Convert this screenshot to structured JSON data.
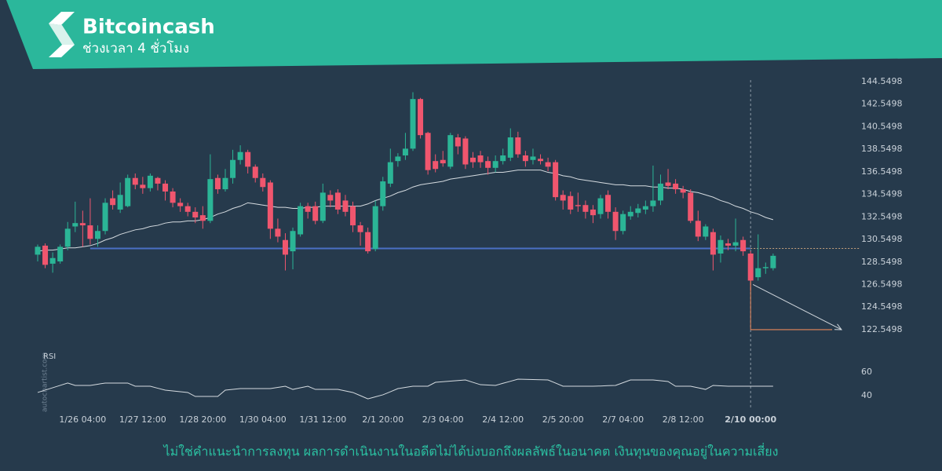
{
  "header": {
    "title": "Bitcoincash",
    "subtitle": "ช่วงเวลา 4 ชั่วโมง"
  },
  "chart_data": {
    "type": "candlestick",
    "categories": [
      null,
      null,
      null,
      null,
      null,
      null,
      "1/26 04:00",
      null,
      null,
      null,
      null,
      null,
      null,
      null,
      "1/27 12:00",
      null,
      null,
      null,
      null,
      null,
      null,
      null,
      "1/28 20:00",
      null,
      null,
      null,
      null,
      null,
      null,
      null,
      "1/30 04:00",
      null,
      null,
      null,
      null,
      null,
      null,
      null,
      "1/31 12:00",
      null,
      null,
      null,
      null,
      null,
      null,
      null,
      "2/1 20:00",
      null,
      null,
      null,
      null,
      null,
      null,
      null,
      "2/3 04:00",
      null,
      null,
      null,
      null,
      null,
      null,
      null,
      "2/4 12:00",
      null,
      null,
      null,
      null,
      null,
      null,
      null,
      "2/5 20:00",
      null,
      null,
      null,
      null,
      null,
      null,
      null,
      "2/7 04:00",
      null,
      null,
      null,
      null,
      null,
      null,
      null,
      "2/8 12:00",
      null,
      null,
      null,
      null,
      null,
      null,
      null,
      null,
      "2/10 00:00",
      null,
      null,
      null
    ],
    "open": [
      129.2,
      130.0,
      128.4,
      128.6,
      129.9,
      131.7,
      132.0,
      131.8,
      130.6,
      131.3,
      134.2,
      133.2,
      133.5,
      136.0,
      135.4,
      135.1,
      136.0,
      135.5,
      134.8,
      133.8,
      133.5,
      133.0,
      132.7,
      132.2,
      136.0,
      135.0,
      136.0,
      137.6,
      138.3,
      137.0,
      136.0,
      135.6,
      131.5,
      130.5,
      129.5,
      131.0,
      133.5,
      133.5,
      132.2,
      134.5,
      134.7,
      134.0,
      133.5,
      131.8,
      131.2,
      129.7,
      133.5,
      135.5,
      137.5,
      138.0,
      138.6,
      143.0,
      140.0,
      137.5,
      137.6,
      137.0,
      139.6,
      139.5,
      137.8,
      138.0,
      137.5,
      136.9,
      137.5,
      137.8,
      139.6,
      138.0,
      137.6,
      137.7,
      137.4,
      137.4,
      134.5,
      134.4,
      133.6,
      133.6,
      133.2,
      132.8,
      134.5,
      133.0,
      131.3,
      132.6,
      132.9,
      133.2,
      133.5,
      134.0,
      135.6,
      135.5,
      135.0,
      134.7,
      132.2,
      130.8,
      131.2,
      129.3,
      130.2,
      130.0,
      130.5,
      129.3,
      127.2,
      128.0,
      128.0
    ],
    "high": [
      130.1,
      130.2,
      129.4,
      130.1,
      132.1,
      133.9,
      133.1,
      134.2,
      131.8,
      134.2,
      134.9,
      135.6,
      136.3,
      136.4,
      136.1,
      136.4,
      136.1,
      135.8,
      135.1,
      134.2,
      133.8,
      133.4,
      133.5,
      138.1,
      136.3,
      136.8,
      138.5,
      138.9,
      138.5,
      137.2,
      136.4,
      135.8,
      132.4,
      131.1,
      131.6,
      133.8,
      133.8,
      133.9,
      135.5,
      134.9,
      135.0,
      134.5,
      133.9,
      132.1,
      131.6,
      134.0,
      136.1,
      138.6,
      138.2,
      140.0,
      143.6,
      143.1,
      140.1,
      138.1,
      138.4,
      140.0,
      139.9,
      139.7,
      138.3,
      138.4,
      137.9,
      138.0,
      138.6,
      140.4,
      140.1,
      138.4,
      138.6,
      138.1,
      137.8,
      137.6,
      134.9,
      134.8,
      134.7,
      134.0,
      133.6,
      134.5,
      134.9,
      133.4,
      133.1,
      133.5,
      133.7,
      134.0,
      137.1,
      136.3,
      136.8,
      135.9,
      135.3,
      135.0,
      133.1,
      131.9,
      131.5,
      130.9,
      130.6,
      132.4,
      130.8,
      129.5,
      131.0,
      128.5,
      129.3
    ],
    "low": [
      128.6,
      128.0,
      127.6,
      128.4,
      129.6,
      131.2,
      129.9,
      130.1,
      129.9,
      131.0,
      133.2,
      132.9,
      133.4,
      135.0,
      134.6,
      134.8,
      134.9,
      134.0,
      133.4,
      133.0,
      132.6,
      132.0,
      131.5,
      132.0,
      134.6,
      134.8,
      135.5,
      137.2,
      136.4,
      135.6,
      134.8,
      130.6,
      130.3,
      127.8,
      127.9,
      130.8,
      132.4,
      131.9,
      132.0,
      133.4,
      132.8,
      132.6,
      131.2,
      130.0,
      129.3,
      129.5,
      133.1,
      135.2,
      137.0,
      137.6,
      138.4,
      139.5,
      136.3,
      136.5,
      137.0,
      136.8,
      138.1,
      136.8,
      136.9,
      136.9,
      136.3,
      136.5,
      137.2,
      137.5,
      137.8,
      137.0,
      137.2,
      137.2,
      136.6,
      134.0,
      133.2,
      132.8,
      133.0,
      132.4,
      132.0,
      132.4,
      132.4,
      130.5,
      131.0,
      132.3,
      132.5,
      132.8,
      133.0,
      133.6,
      135.0,
      134.6,
      134.2,
      132.0,
      130.4,
      130.5,
      127.8,
      128.5,
      129.6,
      129.5,
      129.1,
      126.0,
      126.9,
      127.5,
      127.8
    ],
    "close": [
      129.9,
      128.3,
      128.9,
      129.9,
      131.5,
      132.0,
      131.8,
      130.6,
      131.3,
      133.8,
      133.6,
      134.5,
      136.0,
      135.4,
      135.1,
      136.2,
      135.5,
      134.8,
      133.8,
      133.5,
      133.0,
      132.5,
      132.2,
      135.9,
      135.0,
      136.0,
      137.6,
      138.3,
      137.0,
      136.0,
      135.2,
      131.5,
      130.8,
      129.2,
      131.3,
      133.5,
      133.0,
      132.2,
      134.7,
      134.0,
      133.2,
      133.0,
      131.8,
      131.2,
      129.5,
      133.5,
      135.7,
      137.4,
      137.9,
      138.6,
      143.0,
      139.8,
      136.7,
      136.8,
      137.3,
      139.8,
      138.8,
      137.2,
      137.4,
      137.4,
      136.9,
      137.5,
      138.0,
      139.6,
      138.1,
      137.5,
      137.9,
      137.5,
      137.0,
      134.3,
      134.0,
      133.2,
      133.5,
      133.0,
      132.7,
      134.2,
      133.0,
      131.3,
      132.8,
      133.0,
      133.3,
      133.5,
      134.0,
      135.5,
      135.3,
      135.0,
      134.7,
      132.2,
      130.8,
      131.7,
      129.2,
      130.5,
      130.0,
      130.3,
      129.5,
      126.9,
      128.0,
      128.1,
      129.1
    ],
    "up_color": "#2bb596",
    "down_color": "#f0566e",
    "ma": {
      "color": "#d5dbe0",
      "values": [
        129.5,
        129.6,
        129.6,
        129.7,
        129.8,
        129.8,
        129.9,
        130.0,
        130.2,
        130.5,
        130.7,
        131.0,
        131.2,
        131.4,
        131.5,
        131.7,
        131.8,
        132.0,
        132.1,
        132.1,
        132.2,
        132.2,
        132.3,
        132.5,
        132.8,
        133.0,
        133.3,
        133.5,
        133.8,
        133.7,
        133.6,
        133.5,
        133.4,
        133.4,
        133.3,
        133.3,
        133.4,
        133.4,
        133.5,
        133.5,
        133.5,
        133.5,
        133.5,
        133.5,
        133.7,
        134.0,
        134.2,
        134.4,
        134.7,
        134.9,
        135.2,
        135.4,
        135.5,
        135.6,
        135.7,
        135.9,
        136.0,
        136.1,
        136.2,
        136.3,
        136.4,
        136.5,
        136.5,
        136.6,
        136.7,
        136.7,
        136.7,
        136.7,
        136.5,
        136.4,
        136.2,
        136.1,
        135.9,
        135.8,
        135.7,
        135.6,
        135.5,
        135.4,
        135.4,
        135.3,
        135.3,
        135.3,
        135.2,
        135.2,
        135.1,
        135.1,
        135.0,
        134.8,
        134.7,
        134.5,
        134.3,
        134.0,
        133.8,
        133.5,
        133.3,
        133.0,
        132.8,
        132.5,
        132.3
      ]
    },
    "ylim": [
      121.85,
      145.17
    ],
    "yticks": [
      122.5498,
      124.5498,
      126.5498,
      128.5498,
      130.5498,
      132.5498,
      134.5498,
      136.5498,
      138.5498,
      140.5498,
      142.5498,
      144.5498
    ],
    "support": 129.75,
    "support_color": "#4a70c4",
    "target": 122.5498,
    "target_color": "#e8875a",
    "rsi": {
      "label": "RSI",
      "ylim": [
        30,
        70
      ],
      "yticks": [
        40,
        60
      ],
      "values": [
        42.7,
        44.7,
        46.7,
        48.7,
        50.7,
        48.7,
        48.7,
        48.7,
        49.7,
        50.7,
        50.7,
        50.7,
        50.7,
        48,
        48,
        48,
        46.3,
        44.7,
        44,
        43.3,
        42.7,
        39.3,
        39.3,
        39.3,
        39.3,
        44.7,
        45.3,
        46,
        46,
        46,
        46,
        46,
        47,
        48,
        45.3,
        46.7,
        48,
        45.3,
        45.3,
        45.3,
        45.3,
        44,
        42.7,
        40,
        37.3,
        39,
        40.7,
        43.3,
        46,
        47,
        48,
        48,
        48,
        51.3,
        51.8,
        52.3,
        52.8,
        53.3,
        51.3,
        49.3,
        49,
        48.7,
        50.5,
        52.2,
        54,
        53.8,
        53.7,
        53.5,
        53.3,
        50.7,
        48,
        48,
        48,
        48,
        48,
        48.2,
        48.5,
        48.7,
        51,
        53.3,
        53.3,
        53.3,
        53.3,
        52.7,
        52,
        48,
        48,
        48,
        46.7,
        45.3,
        48.7,
        48.3,
        48,
        48,
        48,
        48,
        48,
        48,
        48
      ]
    },
    "watermark": "autochartist.com"
  },
  "disclaimer": "ไม่ใช่คำแนะนำการลงทุน ผลการดำเนินงานในอดีตไม่ได้บ่งบอกถึงผลลัพธ์ในอนาคต เงินทุนของคุณอยู่ในความเสี่ยง"
}
